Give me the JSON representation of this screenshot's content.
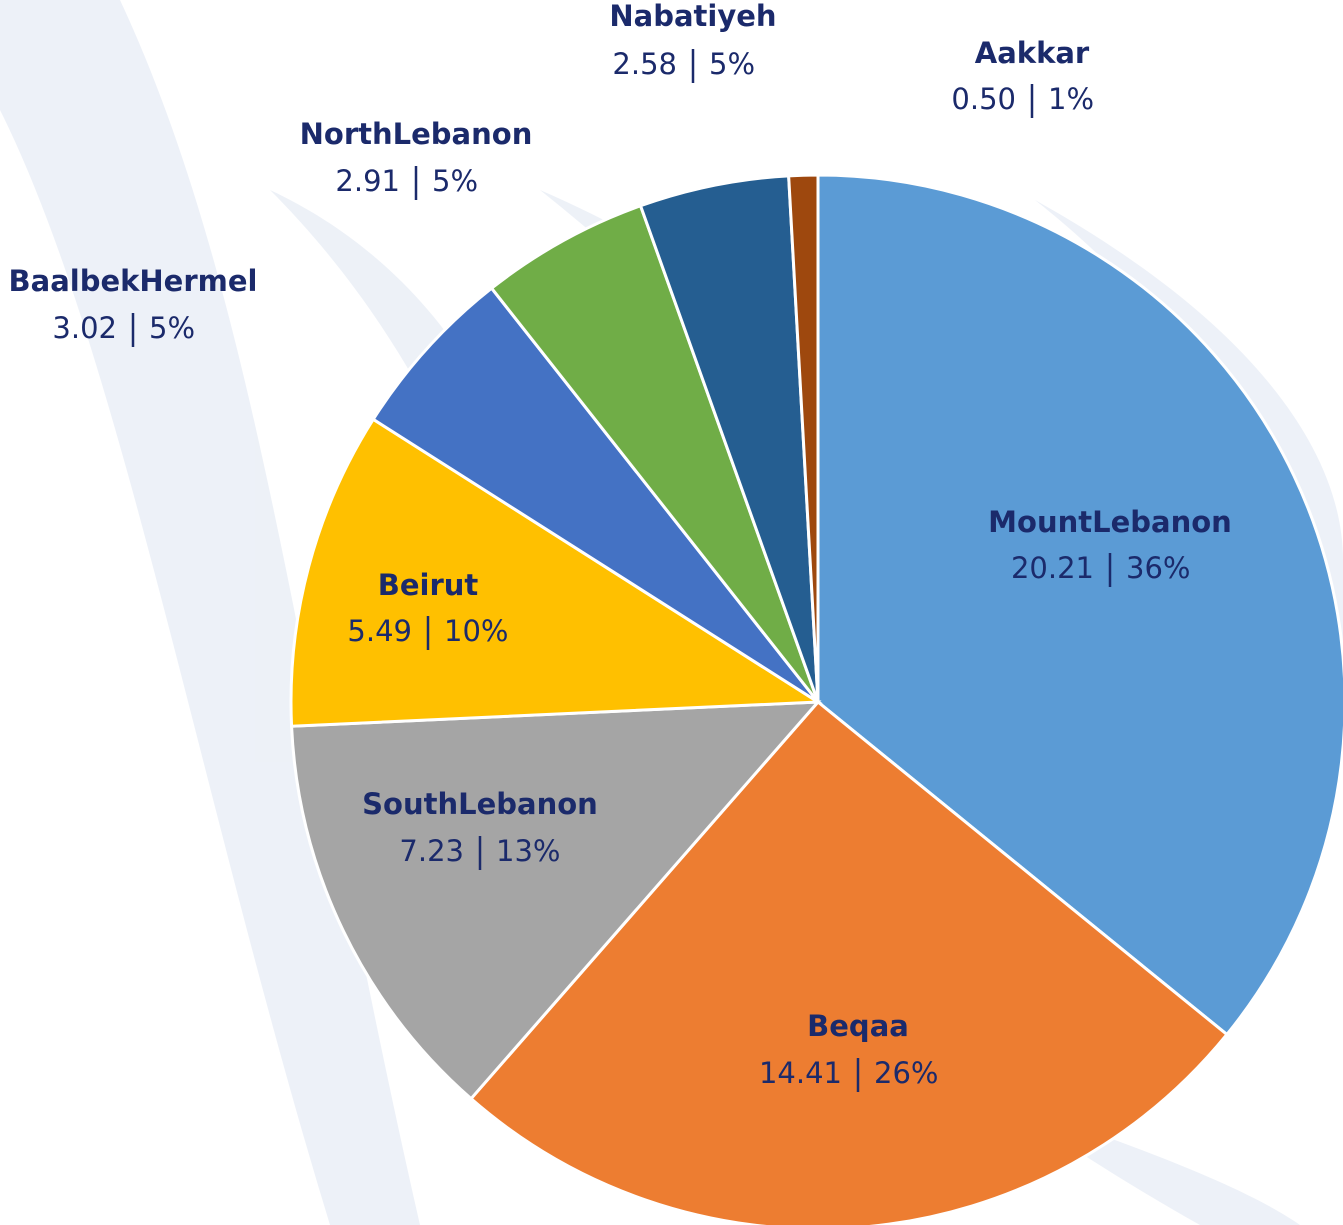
{
  "chart_data": {
    "type": "pie",
    "categories": [
      "MountLebanon",
      "Beqaa",
      "SouthLebanon",
      "Beirut",
      "BaalbekHermel",
      "NorthLebanon",
      "Nabatiyeh",
      "Aakkar"
    ],
    "values": [
      20.21,
      14.41,
      7.23,
      5.49,
      3.02,
      2.91,
      2.58,
      0.5
    ],
    "value_labels": [
      "20.21",
      "14.41",
      "7.23",
      "5.49",
      "3.02",
      "2.91",
      "2.58",
      "0.50"
    ],
    "percents": [
      36,
      26,
      13,
      10,
      5,
      5,
      5,
      1
    ],
    "percent_labels": [
      "36%",
      "26%",
      "13%",
      "10%",
      "5%",
      "5%",
      "5%",
      "1%"
    ],
    "colors": [
      "#5b9bd5",
      "#ed7d31",
      "#a5a5a5",
      "#ffc000",
      "#4472c4",
      "#70ad47",
      "#255e91",
      "#9e480e"
    ]
  }
}
